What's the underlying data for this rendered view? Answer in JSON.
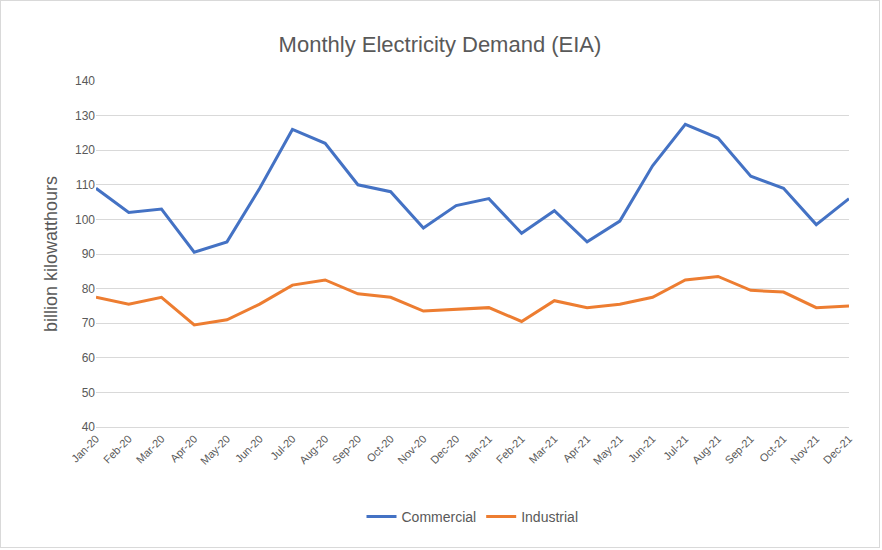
{
  "chart_data": {
    "type": "line",
    "title": "Monthly Electricity Demand (EIA)",
    "y_label": "billion kilowatthours",
    "categories": [
      "Jan-20",
      "Feb-20",
      "Mar-20",
      "Apr-20",
      "May-20",
      "Jun-20",
      "Jul-20",
      "Aug-20",
      "Sep-20",
      "Oct-20",
      "Nov-20",
      "Dec-20",
      "Jan-21",
      "Feb-21",
      "Mar-21",
      "Apr-21",
      "May-21",
      "Jun-21",
      "Jul-21",
      "Aug-21",
      "Sep-21",
      "Oct-21",
      "Nov-21",
      "Dec-21"
    ],
    "series": [
      {
        "name": "Commercial",
        "color": "#4472c4",
        "values": [
          109,
          102,
          103,
          90.5,
          93.5,
          109,
          126,
          122,
          110,
          108,
          97.5,
          104,
          106,
          96,
          102.5,
          93.5,
          99.5,
          115.5,
          127.5,
          123.5,
          112.5,
          109,
          98.5,
          106
        ]
      },
      {
        "name": "Industrial",
        "color": "#ed7d31",
        "values": [
          77.5,
          75.5,
          77.5,
          69.5,
          71,
          75.5,
          81,
          82.5,
          78.5,
          77.5,
          73.5,
          74,
          74.5,
          70.5,
          76.5,
          74.5,
          75.5,
          77.5,
          82.5,
          83.5,
          79.5,
          79,
          74.5,
          75
        ]
      }
    ],
    "ylim": [
      40,
      140
    ],
    "yticks": [
      40,
      50,
      60,
      70,
      80,
      90,
      100,
      110,
      120,
      130,
      140
    ],
    "grid": true,
    "legend": "bottom"
  }
}
